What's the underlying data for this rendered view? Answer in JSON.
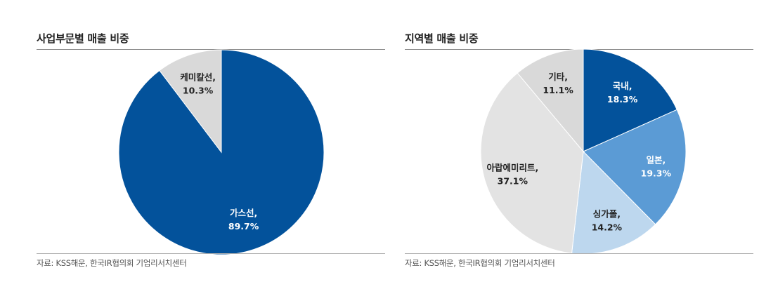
{
  "chart_data": [
    {
      "type": "pie",
      "title": "사업부문별 매출 비중",
      "slices": [
        {
          "label": "가스선,",
          "value": 89.7,
          "value_text": "89.7%",
          "color": "#03529b",
          "text_color": "#ffffff"
        },
        {
          "label": "케미칼선,",
          "value": 10.3,
          "value_text": "10.3%",
          "color": "#d9d9d9",
          "text_color": "#222222"
        }
      ],
      "source": "자료: KSS해운, 한국IR협의회 기업리서치센터"
    },
    {
      "type": "pie",
      "title": "지역별 매출 비중",
      "slices": [
        {
          "label": "국내,",
          "value": 18.3,
          "value_text": "18.3%",
          "color": "#03529b",
          "text_color": "#ffffff"
        },
        {
          "label": "일본,",
          "value": 19.3,
          "value_text": "19.3%",
          "color": "#5b9bd5",
          "text_color": "#ffffff"
        },
        {
          "label": "싱가폴,",
          "value": 14.2,
          "value_text": "14.2%",
          "color": "#bdd7ee",
          "text_color": "#222222"
        },
        {
          "label": "아랍에미리트,",
          "value": 37.1,
          "value_text": "37.1%",
          "color": "#e3e3e3",
          "text_color": "#222222"
        },
        {
          "label": "기타,",
          "value": 11.1,
          "value_text": "11.1%",
          "color": "#d9d9d9",
          "text_color": "#222222"
        }
      ],
      "source": "자료: KSS해운, 한국IR협의회 기업리서치센터"
    }
  ]
}
